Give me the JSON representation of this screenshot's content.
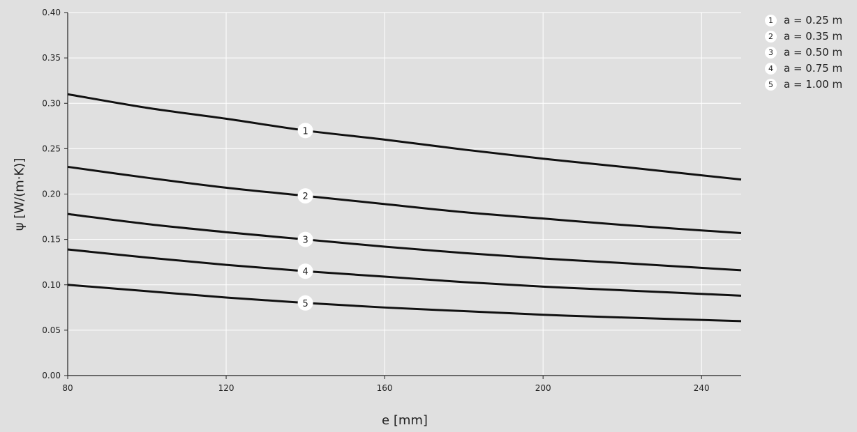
{
  "chart_data": {
    "type": "line",
    "xlabel": "e [mm]",
    "ylabel": "ψ [W/(m·K)]",
    "xlim": [
      80,
      250
    ],
    "ylim": [
      0.0,
      0.4
    ],
    "xticks": [
      80,
      120,
      160,
      200,
      240
    ],
    "yticks": [
      "0.00",
      "0.05",
      "0.10",
      "0.15",
      "0.20",
      "0.25",
      "0.30",
      "0.35",
      "0.40"
    ],
    "grid": true,
    "legend_position": "right",
    "series": [
      {
        "id": "1",
        "name": "a = 0.25 m",
        "x": [
          80,
          100,
          120,
          140,
          160,
          180,
          200,
          220,
          250
        ],
        "y": [
          0.31,
          0.295,
          0.283,
          0.27,
          0.26,
          0.249,
          0.239,
          0.23,
          0.216
        ]
      },
      {
        "id": "2",
        "name": "a = 0.35 m",
        "x": [
          80,
          100,
          120,
          140,
          160,
          180,
          200,
          220,
          250
        ],
        "y": [
          0.23,
          0.218,
          0.207,
          0.198,
          0.189,
          0.18,
          0.173,
          0.166,
          0.157
        ]
      },
      {
        "id": "3",
        "name": "a = 0.50 m",
        "x": [
          80,
          100,
          120,
          140,
          160,
          180,
          200,
          220,
          250
        ],
        "y": [
          0.178,
          0.167,
          0.158,
          0.15,
          0.142,
          0.135,
          0.129,
          0.124,
          0.116
        ]
      },
      {
        "id": "4",
        "name": "a = 0.75 m",
        "x": [
          80,
          100,
          120,
          140,
          160,
          180,
          200,
          220,
          250
        ],
        "y": [
          0.139,
          0.13,
          0.122,
          0.115,
          0.109,
          0.103,
          0.098,
          0.094,
          0.088
        ]
      },
      {
        "id": "5",
        "name": "a = 1.00 m",
        "x": [
          80,
          100,
          120,
          140,
          160,
          180,
          200,
          220,
          250
        ],
        "y": [
          0.1,
          0.093,
          0.086,
          0.08,
          0.075,
          0.071,
          0.067,
          0.064,
          0.06
        ]
      }
    ],
    "annotation_x": 140
  }
}
